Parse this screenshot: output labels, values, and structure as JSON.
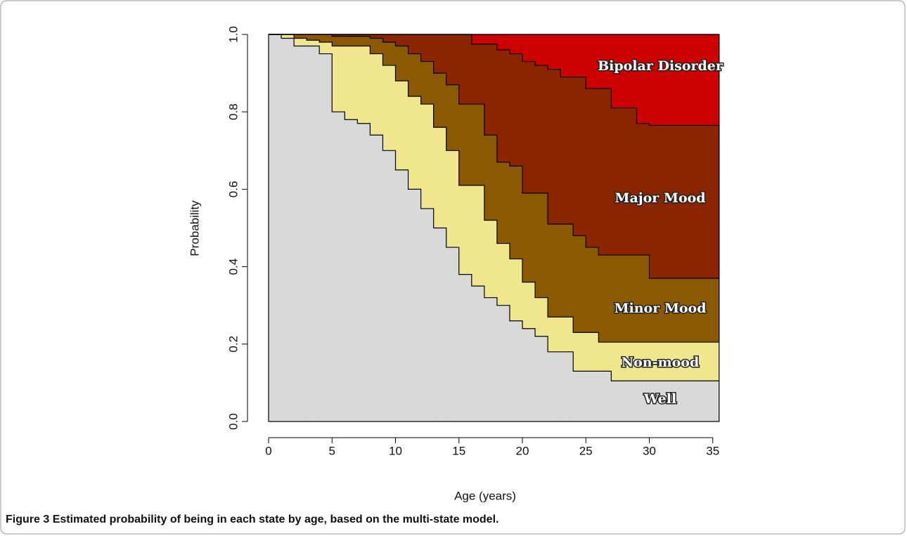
{
  "chart_data": {
    "type": "stacked-step-area",
    "xlabel": "Age (years)",
    "ylabel": "Probability",
    "caption": {
      "label": "Figure 3",
      "text": "Estimated probability of being in each state by age, based on the multi-state model."
    },
    "x": [
      0,
      1,
      2,
      3,
      4,
      5,
      6,
      7,
      8,
      9,
      10,
      11,
      12,
      13,
      14,
      15,
      16,
      17,
      18,
      19,
      20,
      21,
      22,
      23,
      24,
      25,
      26,
      27,
      28,
      29,
      30
    ],
    "xlim": [
      0,
      35.5
    ],
    "ylim": [
      0,
      1
    ],
    "xticks": [
      0,
      5,
      10,
      15,
      20,
      25,
      30,
      35
    ],
    "yticks": [
      {
        "value": 0,
        "label": "0.0"
      },
      0.2,
      0.4,
      0.6,
      0.8,
      {
        "value": 1,
        "label": "1.0"
      }
    ],
    "series": [
      {
        "name": "Well",
        "color": "#d9d9d9",
        "values": [
          1,
          0.99,
          0.97,
          0.97,
          0.95,
          0.8,
          0.78,
          0.77,
          0.74,
          0.7,
          0.65,
          0.6,
          0.55,
          0.5,
          0.45,
          0.38,
          0.35,
          0.32,
          0.3,
          0.26,
          0.24,
          0.22,
          0.18,
          0.18,
          0.13,
          0.13,
          0.13,
          0.105,
          0.105,
          0.105,
          0.105
        ]
      },
      {
        "name": "Non-mood",
        "color": "#f0e68c",
        "values": [
          0,
          0.01,
          0.02,
          0.015,
          0.03,
          0.17,
          0.19,
          0.2,
          0.21,
          0.22,
          0.23,
          0.24,
          0.27,
          0.26,
          0.25,
          0.23,
          0.26,
          0.2,
          0.16,
          0.16,
          0.12,
          0.1,
          0.09,
          0.09,
          0.1,
          0.1,
          0.075,
          0.1,
          0.1,
          0.1,
          0.1
        ]
      },
      {
        "name": "Minor Mood",
        "color": "#8b5a00",
        "values": [
          0,
          0,
          0.01,
          0.015,
          0.02,
          0.025,
          0.025,
          0.025,
          0.04,
          0.06,
          0.09,
          0.11,
          0.11,
          0.14,
          0.17,
          0.21,
          0.21,
          0.22,
          0.21,
          0.24,
          0.23,
          0.27,
          0.24,
          0.24,
          0.25,
          0.22,
          0.225,
          0.225,
          0.225,
          0.225,
          0.165
        ]
      },
      {
        "name": "Major Mood",
        "color": "#8b2500",
        "values": [
          0,
          0,
          0,
          0,
          0,
          0.005,
          0.005,
          0.005,
          0.01,
          0.02,
          0.03,
          0.05,
          0.07,
          0.1,
          0.13,
          0.18,
          0.155,
          0.235,
          0.29,
          0.29,
          0.34,
          0.33,
          0.4,
          0.38,
          0.41,
          0.41,
          0.43,
          0.38,
          0.38,
          0.34,
          0.395
        ]
      },
      {
        "name": "Bipolar Disorder",
        "color": "#cd0000",
        "values": [
          0,
          0,
          0,
          0,
          0,
          0,
          0,
          0,
          0,
          0,
          0,
          0,
          0,
          0,
          0,
          0,
          0.025,
          0.025,
          0.04,
          0.05,
          0.07,
          0.08,
          0.09,
          0.11,
          0.11,
          0.14,
          0.14,
          0.19,
          0.19,
          0.23,
          0.235
        ]
      }
    ]
  }
}
